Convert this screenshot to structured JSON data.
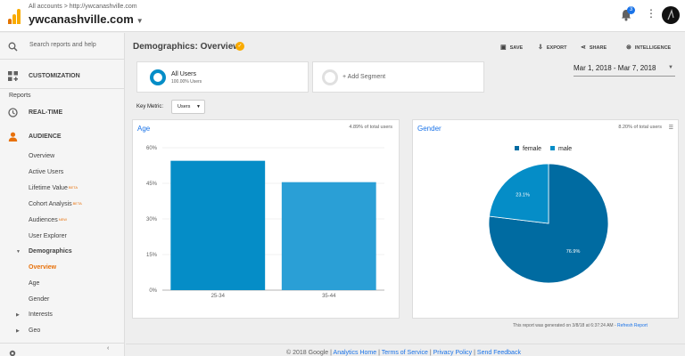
{
  "topbar": {
    "breadcrumb_all": "All accounts",
    "breadcrumb_sep": ">",
    "breadcrumb_site": "http://ywcanashville.com",
    "property_name": "ywcanashville.com",
    "notification_count": "3"
  },
  "sidebar": {
    "search_placeholder": "Search reports and help",
    "customization": "CUSTOMIZATION",
    "reports_label": "Reports",
    "realtime": "REAL-TIME",
    "audience": "AUDIENCE",
    "audience_items": [
      {
        "label": "Overview"
      },
      {
        "label": "Active Users"
      },
      {
        "label": "Lifetime Value",
        "badge": "BETA"
      },
      {
        "label": "Cohort Analysis",
        "badge": "BETA"
      },
      {
        "label": "Audiences",
        "badge": "NEW"
      },
      {
        "label": "User Explorer"
      }
    ],
    "demographics": "Demographics",
    "demographics_items": [
      "Overview",
      "Age",
      "Gender"
    ],
    "interests": "Interests",
    "geo": "Geo"
  },
  "header": {
    "title": "Demographics: Overview",
    "save": "SAVE",
    "export": "EXPORT",
    "share": "SHARE",
    "intelligence": "INTELLIGENCE"
  },
  "segments": {
    "all_users": "All Users",
    "all_users_pct": "100.00% Users",
    "add_segment": "+ Add Segment"
  },
  "date_range": "Mar 1, 2018 - Mar 7, 2018",
  "key_metric": {
    "label": "Key Metric:",
    "value": "Users"
  },
  "age_panel": {
    "title": "Age",
    "total": "4.89% of total users"
  },
  "gender_panel": {
    "title": "Gender",
    "total": "8.20% of total users"
  },
  "chart_data": [
    {
      "type": "bar",
      "title": "Age",
      "categories": [
        "25-34",
        "35-44"
      ],
      "values": [
        54.5,
        45.5
      ],
      "yticks": [
        "0%",
        "15%",
        "30%",
        "45%",
        "60%"
      ],
      "ylim": [
        0,
        60
      ],
      "color": "#058dc7"
    },
    {
      "type": "pie",
      "title": "Gender",
      "labels": [
        "female",
        "male"
      ],
      "values": [
        76.9,
        23.1
      ],
      "value_labels": [
        "76.9%",
        "23.1%"
      ],
      "colors": [
        "#006ba1",
        "#058dc7"
      ],
      "legend": "top"
    }
  ],
  "generated": {
    "text": "This report was generated on 3/8/18 at 6:37:24 AM - ",
    "refresh": "Refresh Report"
  },
  "footer": {
    "copyright": "© 2018 Google",
    "links": [
      "Analytics Home",
      "Terms of Service",
      "Privacy Policy",
      "Send Feedback"
    ]
  }
}
